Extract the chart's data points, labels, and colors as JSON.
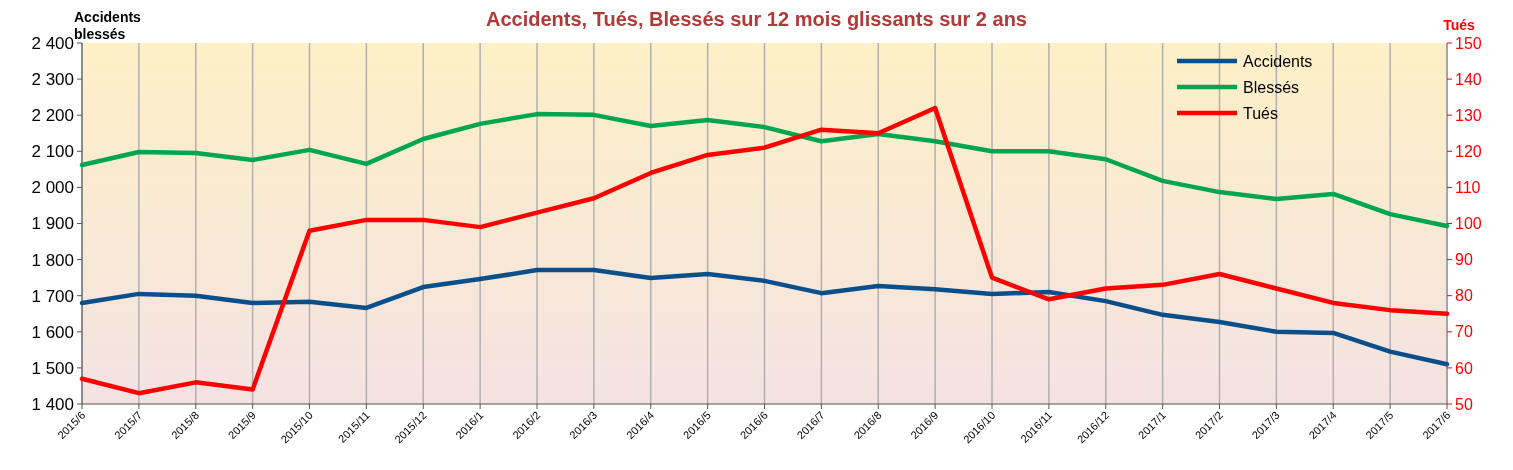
{
  "chart_data": {
    "type": "line",
    "title": "Accidents, Tués, Blessés sur 12 mois glissants sur 2 ans",
    "ylabel": "Accidents\nblessés",
    "y2label": "Tués",
    "categories": [
      "2015/6",
      "2015/7",
      "2015/8",
      "2015/9",
      "2015/10",
      "2015/11",
      "2015/12",
      "2016/1",
      "2016/2",
      "2016/3",
      "2016/4",
      "2016/5",
      "2016/6",
      "2016/7",
      "2016/8",
      "2016/9",
      "2016/10",
      "2016/11",
      "2016/12",
      "2017/1",
      "2017/2",
      "2017/3",
      "2017/4",
      "2017/5",
      "2017/6"
    ],
    "series": [
      {
        "name": "Accidents",
        "color": "#0b4f8a",
        "values": [
          1680,
          1705,
          1700,
          1680,
          1683,
          1666,
          1724,
          1746,
          1771,
          1771,
          1749,
          1760,
          1741,
          1707,
          1727,
          1718,
          1705,
          1710,
          1685,
          1647,
          1627,
          1600,
          1597,
          1545,
          1510
        ]
      },
      {
        "name": "Blessés",
        "color": "#00a550",
        "values": [
          2062,
          2098,
          2095,
          2076,
          2104,
          2065,
          2134,
          2176,
          2203,
          2201,
          2170,
          2187,
          2167,
          2128,
          2148,
          2128,
          2100,
          2100,
          2078,
          2018,
          1987,
          1968,
          1982,
          1926,
          1893
        ]
      },
      {
        "name": "Tués",
        "color": "#ff0000",
        "axis": "y2",
        "values": [
          57,
          53,
          56,
          54,
          98,
          101,
          101,
          99,
          103,
          107,
          114,
          119,
          121,
          126,
          125,
          132,
          85,
          79,
          82,
          83,
          86,
          82,
          78,
          76,
          75
        ]
      }
    ],
    "ylim": [
      1400,
      2400
    ],
    "yticks": [
      {
        "value": 1400,
        "label": "1 400"
      },
      {
        "value": 1500,
        "label": "1 500"
      },
      {
        "value": 1600,
        "label": "1 600"
      },
      {
        "value": 1700,
        "label": "1 700"
      },
      {
        "value": 1800,
        "label": "1 800"
      },
      {
        "value": 1900,
        "label": "1 900"
      },
      {
        "value": 2000,
        "label": "2 000"
      },
      {
        "value": 2100,
        "label": "2 100"
      },
      {
        "value": 2200,
        "label": "2 200"
      },
      {
        "value": 2300,
        "label": "2 300"
      },
      {
        "value": 2400,
        "label": "2 400"
      }
    ],
    "y2lim": [
      50,
      150
    ],
    "y2ticks": [
      50,
      60,
      70,
      80,
      90,
      100,
      110,
      120,
      130,
      140,
      150
    ],
    "grid": "x",
    "legend": "top right",
    "line_style": "solid",
    "marker": "none"
  }
}
